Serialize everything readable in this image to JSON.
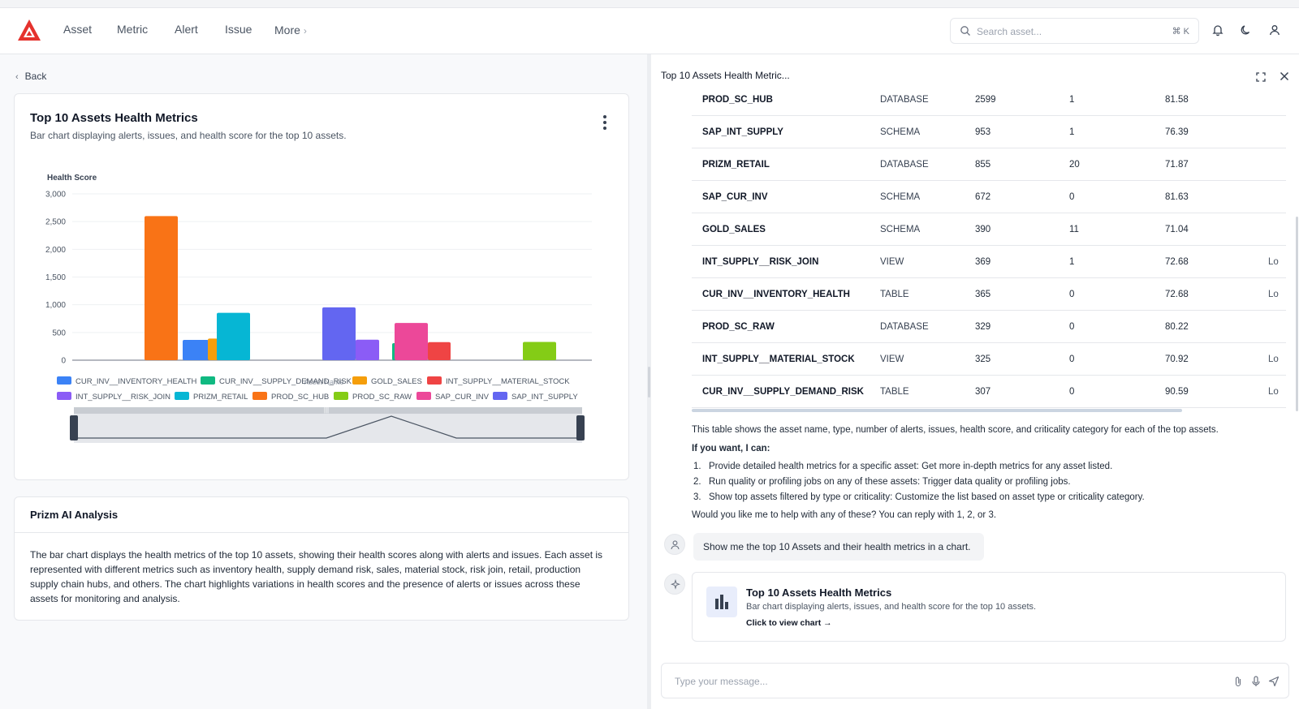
{
  "nav": {
    "items": [
      "Asset",
      "Metric",
      "Alert",
      "Issue"
    ],
    "more": "More",
    "search_placeholder": "Search asset...",
    "search_shortcut": "⌘ K",
    "brand_color": "#e5322d"
  },
  "left": {
    "back": "Back",
    "chart_card": {
      "title": "Top 10 Assets Health Metrics",
      "subtitle": "Bar chart displaying alerts, issues, and health score for the top 10 assets."
    },
    "analysis": {
      "title": "Prizm AI Analysis",
      "lines": [
        "The bar chart displays the health metrics of the top 10 assets, showing their health scores along with alerts and issues. Each asset is",
        "represented with different metrics such as inventory health, supply demand risk, sales, material stock, risk join, retail, production",
        "supply chain hubs, and others. The chart highlights variations in health scores and the presence of alerts or issues across these",
        "assets for monitoring and analysis."
      ]
    }
  },
  "chart_data": {
    "type": "bar",
    "ylabel": "Health Score",
    "xlabel": "Asset Name",
    "ylim": [
      0,
      3000
    ],
    "yticks": [
      "0",
      "500",
      "1,000",
      "1,500",
      "2,000",
      "2,500",
      "3,000"
    ],
    "legend_position": "bottom",
    "series": [
      {
        "name": "CUR_INV__INVENTORY_HEALTH",
        "color": "#3b82f6",
        "value": 365
      },
      {
        "name": "CUR_INV__SUPPLY_DEMAND_RISK",
        "color": "#10b981",
        "value": 307
      },
      {
        "name": "GOLD_SALES",
        "color": "#f59e0b",
        "value": 390
      },
      {
        "name": "INT_SUPPLY__MATERIAL_STOCK",
        "color": "#ef4444",
        "value": 325
      },
      {
        "name": "INT_SUPPLY__RISK_JOIN",
        "color": "#8b5cf6",
        "value": 369
      },
      {
        "name": "PRIZM_RETAIL",
        "color": "#06b6d4",
        "value": 855
      },
      {
        "name": "PROD_SC_HUB",
        "color": "#f97316",
        "value": 2599
      },
      {
        "name": "PROD_SC_RAW",
        "color": "#84cc16",
        "value": 329
      },
      {
        "name": "SAP_CUR_INV",
        "color": "#ec4899",
        "value": 672
      },
      {
        "name": "SAP_INT_SUPPLY",
        "color": "#6366f1",
        "value": 953
      }
    ]
  },
  "panel": {
    "title": "Top 10 Assets Health Metric...",
    "table_rows": [
      {
        "name": "PROD_SC_HUB",
        "type": "DATABASE",
        "alerts": "2599",
        "issues": "1",
        "score": "81.58",
        "crit": ""
      },
      {
        "name": "SAP_INT_SUPPLY",
        "type": "SCHEMA",
        "alerts": "953",
        "issues": "1",
        "score": "76.39",
        "crit": ""
      },
      {
        "name": "PRIZM_RETAIL",
        "type": "DATABASE",
        "alerts": "855",
        "issues": "20",
        "score": "71.87",
        "crit": ""
      },
      {
        "name": "SAP_CUR_INV",
        "type": "SCHEMA",
        "alerts": "672",
        "issues": "0",
        "score": "81.63",
        "crit": ""
      },
      {
        "name": "GOLD_SALES",
        "type": "SCHEMA",
        "alerts": "390",
        "issues": "11",
        "score": "71.04",
        "crit": ""
      },
      {
        "name": "INT_SUPPLY__RISK_JOIN",
        "type": "VIEW",
        "alerts": "369",
        "issues": "1",
        "score": "72.68",
        "crit": "Lo"
      },
      {
        "name": "CUR_INV__INVENTORY_HEALTH",
        "type": "TABLE",
        "alerts": "365",
        "issues": "0",
        "score": "72.68",
        "crit": "Lo"
      },
      {
        "name": "PROD_SC_RAW",
        "type": "DATABASE",
        "alerts": "329",
        "issues": "0",
        "score": "80.22",
        "crit": ""
      },
      {
        "name": "INT_SUPPLY__MATERIAL_STOCK",
        "type": "VIEW",
        "alerts": "325",
        "issues": "0",
        "score": "70.92",
        "crit": "Lo"
      },
      {
        "name": "CUR_INV__SUPPLY_DEMAND_RISK",
        "type": "TABLE",
        "alerts": "307",
        "issues": "0",
        "score": "90.59",
        "crit": "Lo"
      }
    ],
    "summary": "This table shows the asset name, type, number of alerts, issues, health score, and criticality category for each of the top assets.",
    "offer_heading": "If you want, I can:",
    "offers": [
      {
        "num": "1.",
        "text": "Provide detailed health metrics for a specific asset: Get more in-depth metrics for any asset listed."
      },
      {
        "num": "2.",
        "text": "Run quality or profiling jobs on any of these assets: Trigger data quality or profiling jobs."
      },
      {
        "num": "3.",
        "text": "Show top assets filtered by type or criticality: Customize the list based on asset type or criticality category."
      }
    ],
    "followup": "Would you like me to help with any of these? You can reply with 1, 2, or 3.",
    "user_message": "Show me the top 10 Assets and their health metrics in a chart.",
    "chart_link": {
      "title": "Top 10 Assets Health Metrics",
      "subtitle": "Bar chart displaying alerts, issues, and health score for the top 10 assets.",
      "cta": "Click to view chart →"
    },
    "composer_placeholder": "Type your message..."
  }
}
